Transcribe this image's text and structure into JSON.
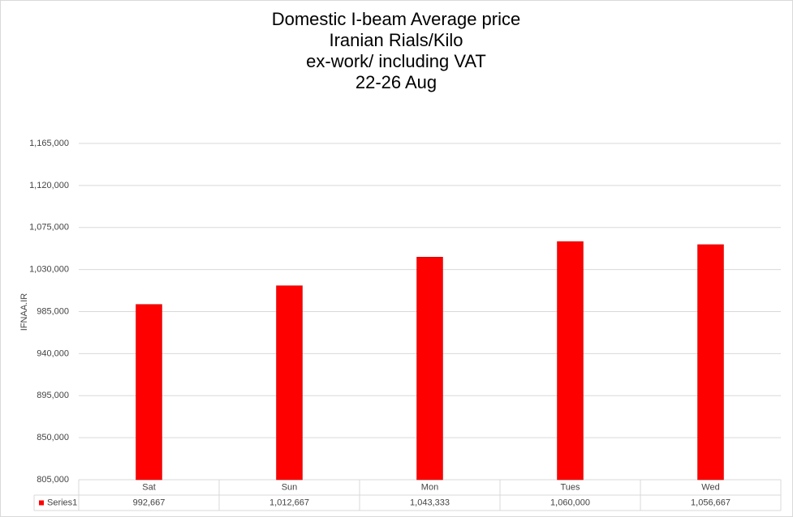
{
  "chart_data": {
    "type": "bar",
    "title": [
      "Domestic I-beam Average price",
      "Iranian Rials/Kilo",
      "ex-work/ including VAT",
      "22-26 Aug"
    ],
    "y_label": "IFNAA.IR",
    "categories": [
      "Sat",
      "Sun",
      "Mon",
      "Tues",
      "Wed"
    ],
    "series": [
      {
        "name": "Series1",
        "color": "#ff0000",
        "values": [
          992667,
          1012667,
          1043333,
          1060000,
          1056667
        ],
        "value_labels": [
          "992,667",
          "1,012,667",
          "1,043,333",
          "1,060,000",
          "1,056,667"
        ]
      }
    ],
    "ylim": [
      805000,
      1165000
    ],
    "yticks": [
      {
        "value": 805000,
        "label": "805,000"
      },
      {
        "value": 850000,
        "label": "850,000"
      },
      {
        "value": 895000,
        "label": "895,000"
      },
      {
        "value": 940000,
        "label": "940,000"
      },
      {
        "value": 985000,
        "label": "985,000"
      },
      {
        "value": 1030000,
        "label": "1,030,000"
      },
      {
        "value": 1075000,
        "label": "1,075,000"
      },
      {
        "value": 1120000,
        "label": "1,120,000"
      },
      {
        "value": 1165000,
        "label": "1,165,000"
      }
    ],
    "grid": true
  }
}
